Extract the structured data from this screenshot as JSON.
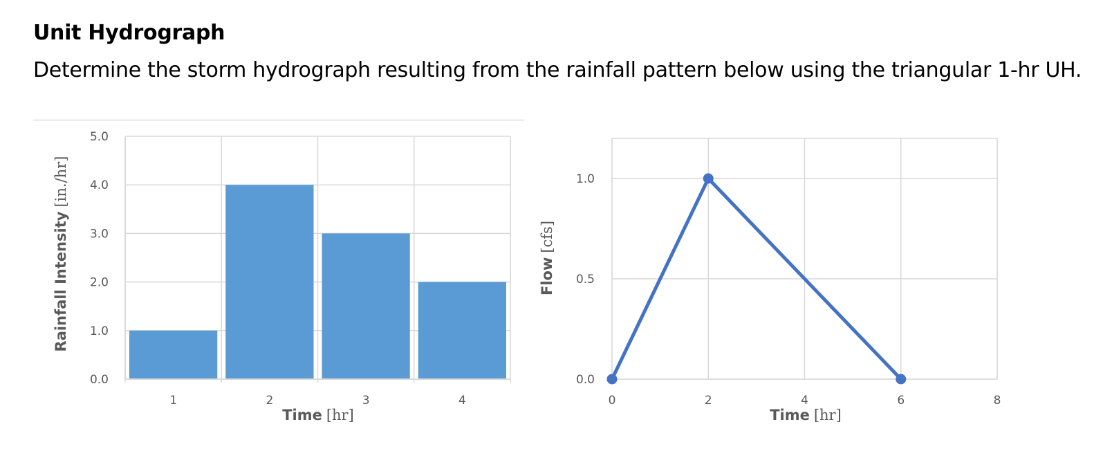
{
  "heading": "Unit Hydrograph",
  "description": "Determine the storm hydrograph resulting from the rainfall pattern below using the triangular 1-hr UH.",
  "colors": {
    "bar": "#5b9bd5",
    "line": "#4472c4",
    "grid": "#d9d9d9",
    "tick_text": "#595959"
  },
  "chart_data": [
    {
      "type": "bar",
      "categories": [
        "1",
        "2",
        "3",
        "4"
      ],
      "values": [
        1.0,
        4.0,
        3.0,
        2.0
      ],
      "xlabel": "Time",
      "xlabel_unit": "[hr]",
      "ylabel": "Rainfall Intensity",
      "ylabel_unit": "[in./hr]",
      "ylim": [
        0,
        5
      ],
      "yticks": [
        "0.0",
        "1.0",
        "2.0",
        "3.0",
        "4.0",
        "5.0"
      ],
      "grid": true
    },
    {
      "type": "line",
      "x": [
        0,
        2,
        6
      ],
      "y": [
        0.0,
        1.0,
        0.0
      ],
      "xlabel": "Time",
      "xlabel_unit": "[hr]",
      "ylabel": "Flow",
      "ylabel_unit": "[cfs]",
      "xlim": [
        0,
        8
      ],
      "ylim": [
        0,
        1.2
      ],
      "xticks": [
        "0",
        "2",
        "4",
        "6",
        "8"
      ],
      "yticks": [
        "0.0",
        "0.5",
        "1.0"
      ],
      "grid": true,
      "markers": true
    }
  ]
}
